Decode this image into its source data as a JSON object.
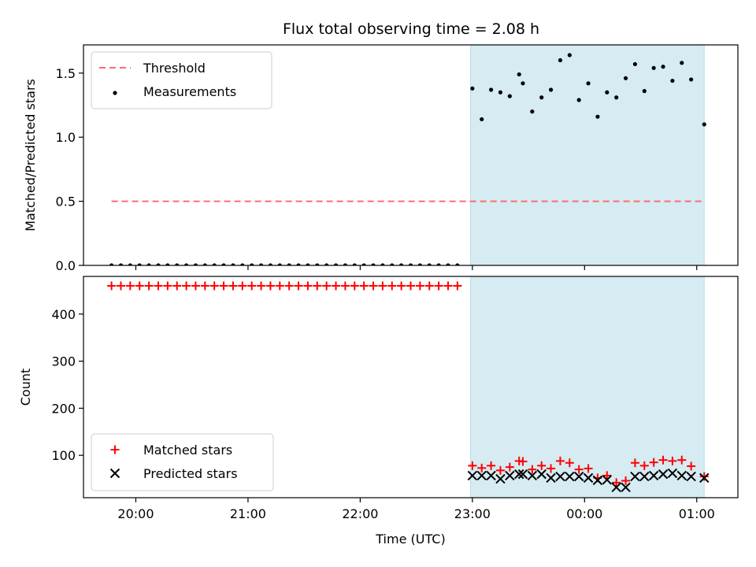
{
  "chart_data": [
    {
      "type": "scatter",
      "title": "Flux total observing time = 2.08 h",
      "xlabel": "",
      "ylabel": "Matched/Predicted stars",
      "xlim": [
        "19:32",
        "01:22"
      ],
      "ylim": [
        0,
        1.72
      ],
      "yticks": [
        0.0,
        0.5,
        1.0,
        1.5
      ],
      "ytick_labels": [
        "0.0",
        "0.5",
        "1.0",
        "1.5"
      ],
      "shaded_region": {
        "start": "22:59",
        "end": "01:04",
        "color": "#add8e6"
      },
      "legend": {
        "placement": "upper-left",
        "entries": [
          "Threshold",
          "Measurements"
        ]
      },
      "series": [
        {
          "name": "Threshold",
          "style": "dashed-line",
          "color": "#ff6b6b",
          "x": [
            "19:47",
            "01:04"
          ],
          "y": [
            0.5,
            0.5
          ]
        },
        {
          "name": "Measurements",
          "style": "dots",
          "color": "#000000",
          "x": [
            "19:47",
            "19:52",
            "19:57",
            "20:02",
            "20:07",
            "20:12",
            "20:17",
            "20:22",
            "20:27",
            "20:32",
            "20:37",
            "20:42",
            "20:47",
            "20:52",
            "20:57",
            "21:02",
            "21:07",
            "21:12",
            "21:17",
            "21:22",
            "21:27",
            "21:32",
            "21:37",
            "21:42",
            "21:47",
            "21:52",
            "21:57",
            "22:02",
            "22:07",
            "22:12",
            "22:17",
            "22:22",
            "22:27",
            "22:32",
            "22:37",
            "22:42",
            "22:47",
            "22:52",
            "23:00",
            "23:05",
            "23:10",
            "23:15",
            "23:20",
            "23:25",
            "23:27",
            "23:32",
            "23:37",
            "23:42",
            "23:47",
            "23:52",
            "23:57",
            "24:02",
            "24:07",
            "24:12",
            "24:17",
            "24:22",
            "24:27",
            "24:32",
            "24:37",
            "24:42",
            "24:47",
            "24:52",
            "24:57",
            "25:04"
          ],
          "y": [
            0,
            0,
            0,
            0,
            0,
            0,
            0,
            0,
            0,
            0,
            0,
            0,
            0,
            0,
            0,
            0,
            0,
            0,
            0,
            0,
            0,
            0,
            0,
            0,
            0,
            0,
            0,
            0,
            0,
            0,
            0,
            0,
            0,
            0,
            0,
            0,
            0,
            0,
            1.38,
            1.14,
            1.37,
            1.35,
            1.32,
            1.49,
            1.42,
            1.2,
            1.31,
            1.37,
            1.6,
            1.64,
            1.29,
            1.42,
            1.16,
            1.35,
            1.31,
            1.46,
            1.57,
            1.36,
            1.54,
            1.55,
            1.44,
            1.58,
            1.45,
            1.1
          ]
        }
      ]
    },
    {
      "type": "scatter",
      "title": "",
      "xlabel": "Time (UTC)",
      "ylabel": "Count",
      "xlim": [
        "19:32",
        "01:22"
      ],
      "ylim": [
        10,
        480
      ],
      "yticks": [
        100,
        200,
        300,
        400
      ],
      "ytick_labels": [
        "100",
        "200",
        "300",
        "400"
      ],
      "xticks": [
        "20:00",
        "21:00",
        "22:00",
        "23:00",
        "00:00",
        "01:00"
      ],
      "shaded_region": {
        "start": "22:59",
        "end": "01:04",
        "color": "#add8e6"
      },
      "legend": {
        "placement": "lower-left",
        "entries": [
          "Matched stars",
          "Predicted stars"
        ]
      },
      "series": [
        {
          "name": "Matched stars",
          "marker": "+",
          "color": "#ff0000",
          "x": [
            "19:47",
            "19:52",
            "19:57",
            "20:02",
            "20:07",
            "20:12",
            "20:17",
            "20:22",
            "20:27",
            "20:32",
            "20:37",
            "20:42",
            "20:47",
            "20:52",
            "20:57",
            "21:02",
            "21:07",
            "21:12",
            "21:17",
            "21:22",
            "21:27",
            "21:32",
            "21:37",
            "21:42",
            "21:47",
            "21:52",
            "21:57",
            "22:02",
            "22:07",
            "22:12",
            "22:17",
            "22:22",
            "22:27",
            "22:32",
            "22:37",
            "22:42",
            "22:47",
            "22:52",
            "23:00",
            "23:05",
            "23:10",
            "23:15",
            "23:20",
            "23:25",
            "23:27",
            "23:32",
            "23:37",
            "23:42",
            "23:47",
            "23:52",
            "23:57",
            "24:02",
            "24:07",
            "24:12",
            "24:17",
            "24:22",
            "24:27",
            "24:32",
            "24:37",
            "24:42",
            "24:47",
            "24:52",
            "24:57",
            "25:04"
          ],
          "y": [
            460,
            460,
            460,
            460,
            460,
            460,
            460,
            460,
            460,
            460,
            460,
            460,
            460,
            460,
            460,
            460,
            460,
            460,
            460,
            460,
            460,
            460,
            460,
            460,
            460,
            460,
            460,
            460,
            460,
            460,
            460,
            460,
            460,
            460,
            460,
            460,
            460,
            460,
            78,
            73,
            78,
            68,
            75,
            88,
            87,
            70,
            78,
            72,
            88,
            84,
            70,
            72,
            52,
            57,
            42,
            46,
            84,
            78,
            85,
            90,
            88,
            90,
            77,
            55
          ]
        },
        {
          "name": "Predicted stars",
          "marker": "x",
          "color": "#000000",
          "x": [
            "23:00",
            "23:05",
            "23:10",
            "23:15",
            "23:20",
            "23:25",
            "23:27",
            "23:32",
            "23:37",
            "23:42",
            "23:47",
            "23:52",
            "23:57",
            "24:02",
            "24:07",
            "24:12",
            "24:17",
            "24:22",
            "24:27",
            "24:32",
            "24:37",
            "24:42",
            "24:47",
            "24:52",
            "24:57",
            "25:04"
          ],
          "y": [
            57,
            57,
            57,
            50,
            57,
            60,
            60,
            57,
            60,
            52,
            55,
            55,
            55,
            52,
            47,
            48,
            32,
            32,
            55,
            55,
            57,
            60,
            62,
            57,
            55,
            52
          ]
        }
      ]
    }
  ]
}
